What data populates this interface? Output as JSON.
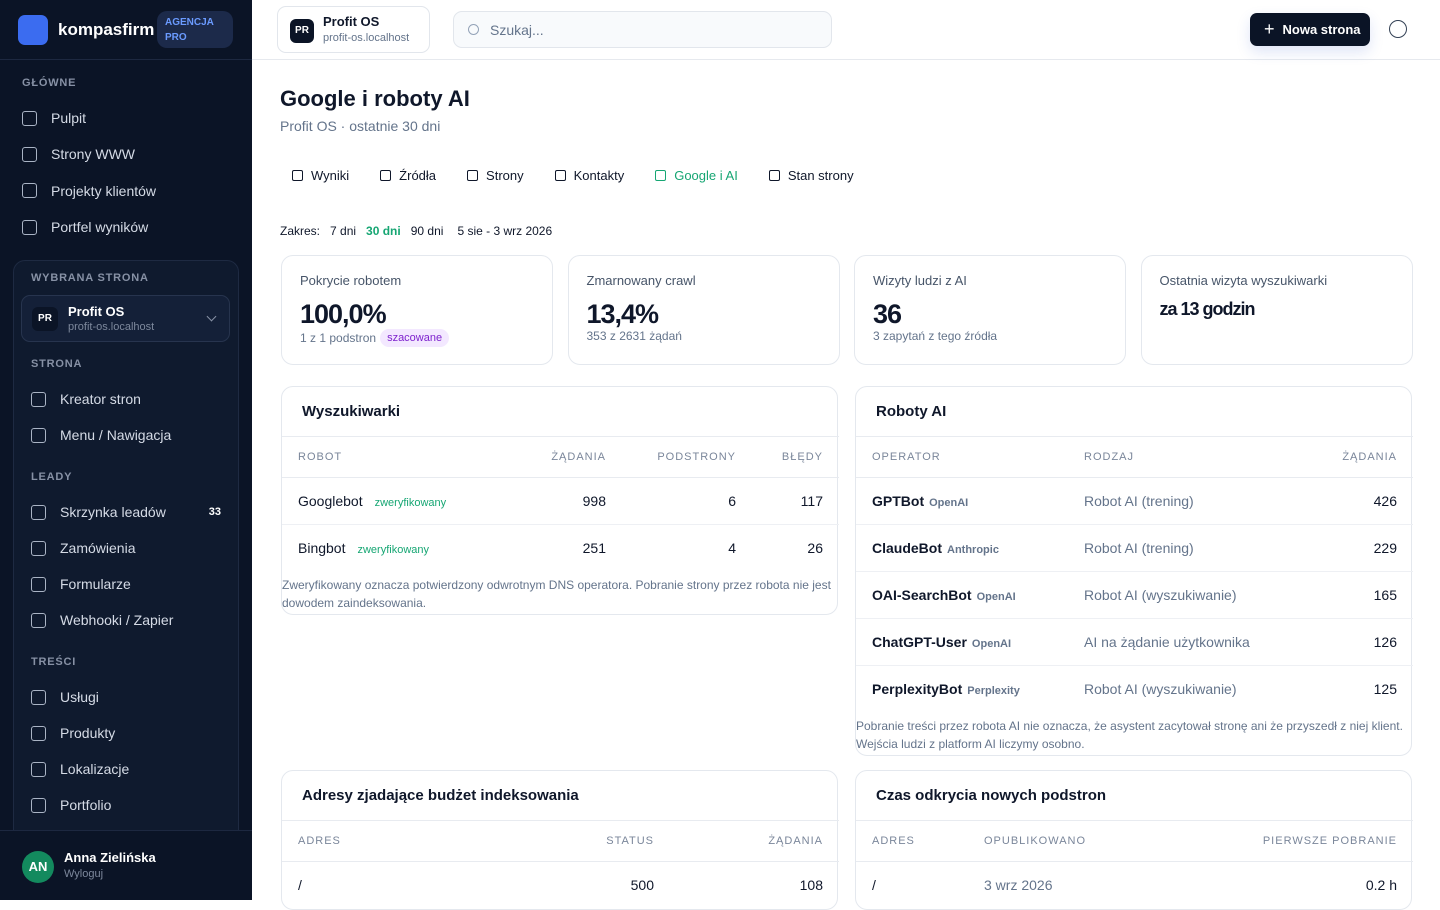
{
  "sidebar": {
    "brand": {
      "name": "kompasfirm",
      "badge": "AGENCJA PRO"
    },
    "main_nav": {
      "title": "GŁÓWNE",
      "items": [
        "Pulpit",
        "Strony WWW",
        "Projekty klientów",
        "Portfel wyników"
      ]
    },
    "site_picker": {
      "title": "WYBRANA STRONA",
      "initials": "PR",
      "name": "Profit OS",
      "host": "profit-os.localhost"
    },
    "groups": [
      {
        "title": "STRONA",
        "items": [
          {
            "label": "Kreator stron"
          },
          {
            "label": "Menu / Nawigacja"
          }
        ]
      },
      {
        "title": "LEADY",
        "items": [
          {
            "label": "Skrzynka leadów",
            "count": 33
          },
          {
            "label": "Zamówienia"
          },
          {
            "label": "Formularze"
          },
          {
            "label": "Webhooki / Zapier"
          }
        ]
      },
      {
        "title": "TREŚCI",
        "items": [
          {
            "label": "Usługi"
          },
          {
            "label": "Produkty"
          },
          {
            "label": "Lokalizacje"
          },
          {
            "label": "Portfolio"
          }
        ]
      }
    ],
    "user": {
      "initials": "AN",
      "name": "Anna Zielińska",
      "action": "Wyloguj"
    }
  },
  "topbar": {
    "site": {
      "initials": "PR",
      "name": "Profit OS",
      "host": "profit-os.localhost"
    },
    "search_placeholder": "Szukaj...",
    "new_button": "Nowa strona"
  },
  "page": {
    "title": "Google i roboty AI",
    "subtitle": "Profit OS · ostatnie 30 dni",
    "tabs": [
      "Wyniki",
      "Źródła",
      "Strony",
      "Kontakty",
      "Google i AI",
      "Stan strony"
    ],
    "range": {
      "label": "Zakres:",
      "options": [
        "7 dni",
        "30 dni",
        "90 dni"
      ],
      "dates": "5 sie - 3 wrz 2026"
    },
    "stats": [
      {
        "label": "Pokrycie robotem",
        "value": "100,0%",
        "note": "1 z 1 podstron",
        "badge": "szacowane"
      },
      {
        "label": "Zmarnowany crawl",
        "value": "13,4%",
        "note": "353 z 2631 żądań"
      },
      {
        "label": "Wizyty ludzi z AI",
        "value": "36",
        "note": "3 zapytań z tego źródła"
      },
      {
        "label": "Ostatnia wizyta wyszukiwarki",
        "value": "za 13 godzin"
      }
    ],
    "search_bots": {
      "title": "Wyszukiwarki",
      "columns": [
        "ROBOT",
        "ŻĄDANIA",
        "PODSTRONY",
        "BŁĘDY"
      ],
      "rows": [
        {
          "robot": "Googlebot",
          "badge": "zweryfikowany",
          "requests": 998,
          "pages": 6,
          "errors": 117
        },
        {
          "robot": "Bingbot",
          "badge": "zweryfikowany",
          "requests": 251,
          "pages": 4,
          "errors": 26
        }
      ],
      "note": "Zweryfikowany oznacza potwierdzony odwrotnym DNS operatora. Pobranie strony przez robota nie jest dowodem zaindeksowania."
    },
    "ai_bots": {
      "title": "Roboty AI",
      "columns": [
        "OPERATOR",
        "RODZAJ",
        "ŻĄDANIA"
      ],
      "rows": [
        {
          "name": "GPTBot",
          "operator": "OpenAI",
          "kind": "Robot AI (trening)",
          "requests": 426
        },
        {
          "name": "ClaudeBot",
          "operator": "Anthropic",
          "kind": "Robot AI (trening)",
          "requests": 229
        },
        {
          "name": "OAI-SearchBot",
          "operator": "OpenAI",
          "kind": "Robot AI (wyszukiwanie)",
          "requests": 165
        },
        {
          "name": "ChatGPT-User",
          "operator": "OpenAI",
          "kind": "AI na żądanie użytkownika",
          "requests": 126
        },
        {
          "name": "PerplexityBot",
          "operator": "Perplexity",
          "kind": "Robot AI (wyszukiwanie)",
          "requests": 125
        }
      ],
      "note": "Pobranie treści przez robota AI nie oznacza, że asystent zacytował stronę ani że przyszedł z niej klient. Wejścia ludzi z platform AI liczymy osobno."
    },
    "budget": {
      "title": "Adresy zjadające budżet indeksowania",
      "columns": [
        "ADRES",
        "STATUS",
        "ŻĄDANIA"
      ],
      "rows": [
        {
          "address": "/",
          "status": 500,
          "requests": 108
        }
      ]
    },
    "discovery": {
      "title": "Czas odkrycia nowych podstron",
      "columns": [
        "ADRES",
        "OPUBLIKOWANO",
        "PIERWSZE POBRANIE"
      ],
      "rows": [
        {
          "address": "/",
          "published": "3 wrz 2026",
          "first_fetch": "0.2 h"
        }
      ]
    }
  }
}
